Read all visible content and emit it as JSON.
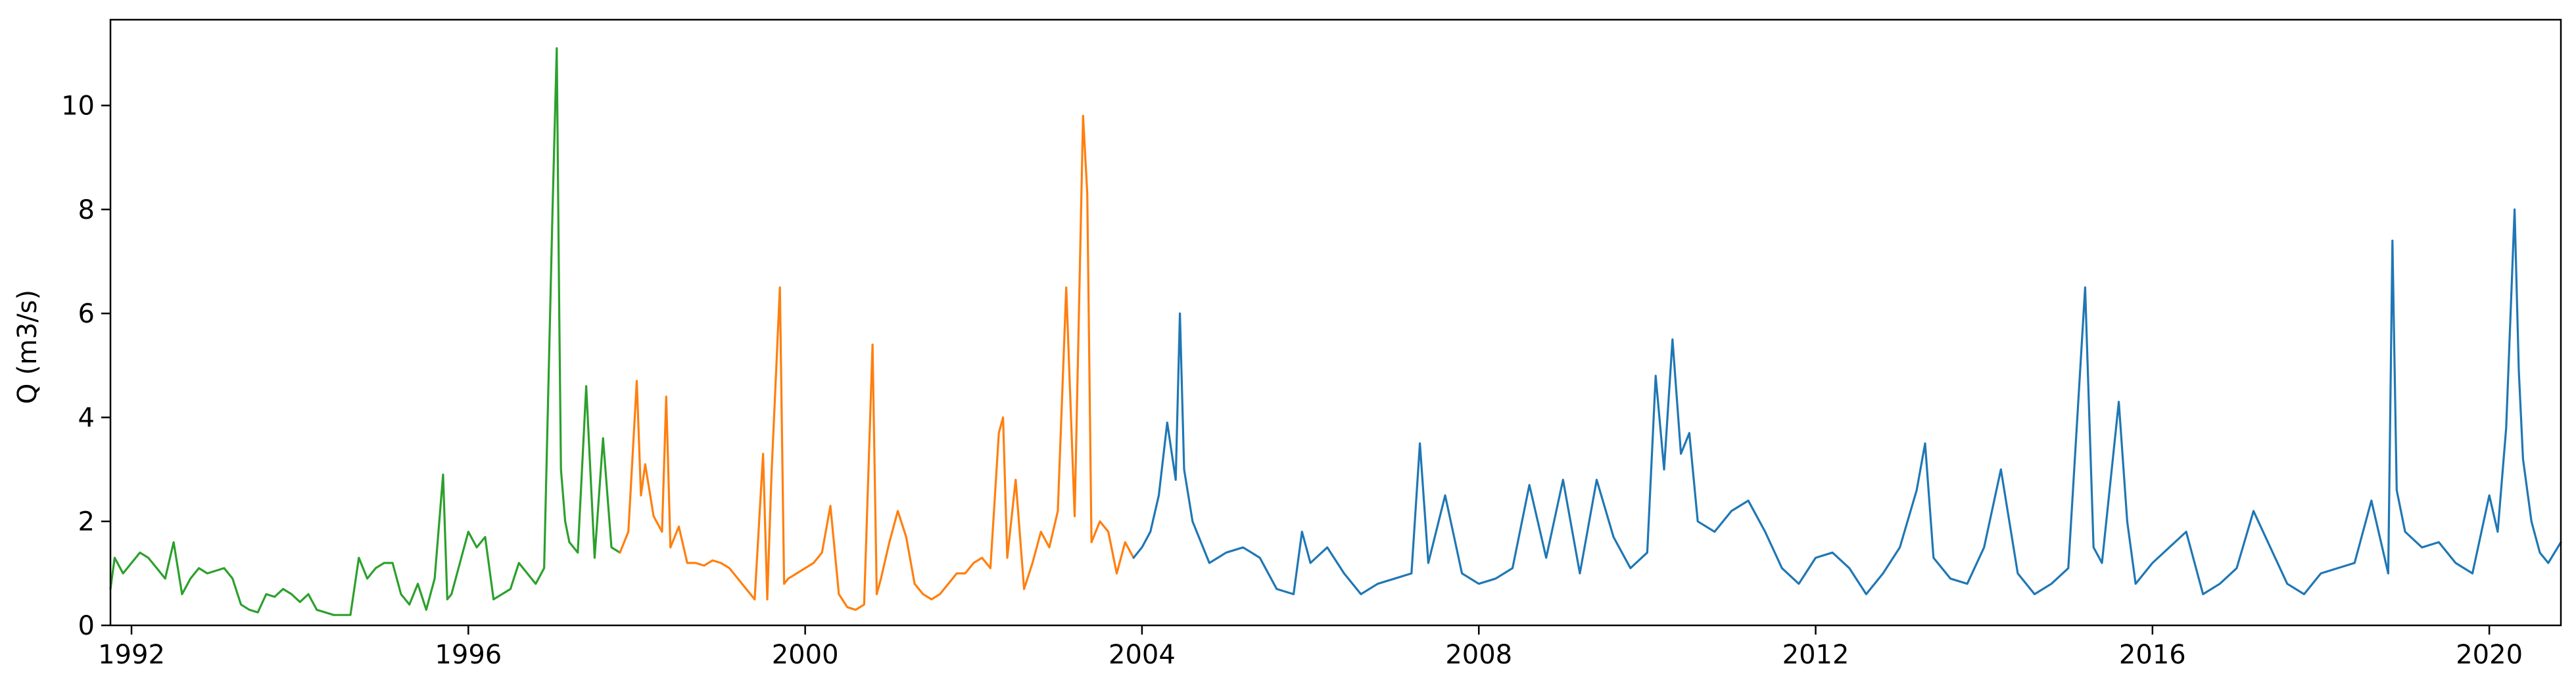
{
  "chart_data": {
    "type": "line",
    "title": "",
    "xlabel": "",
    "ylabel": "Q (m3/s)",
    "xlim": [
      1991.75,
      2020.85
    ],
    "ylim": [
      0,
      11.65
    ],
    "grid": false,
    "xticks": [
      1992,
      1996,
      2000,
      2004,
      2008,
      2012,
      2016,
      2020
    ],
    "yticks": [
      0,
      2,
      4,
      6,
      8,
      10
    ],
    "x_tick_labels": [
      "1992",
      "1996",
      "2000",
      "2004",
      "2008",
      "2012",
      "2016",
      "2020"
    ],
    "y_tick_labels": [
      "0",
      "2",
      "4",
      "6",
      "8",
      "10"
    ],
    "series": [
      {
        "color": "#2ca02c",
        "x": [
          1991.75,
          1991.8,
          1991.9,
          1992.0,
          1992.1,
          1992.2,
          1992.3,
          1992.4,
          1992.5,
          1992.6,
          1992.7,
          1992.8,
          1992.9,
          1993.0,
          1993.1,
          1993.2,
          1993.3,
          1993.4,
          1993.5,
          1993.6,
          1993.7,
          1993.8,
          1993.9,
          1994.0,
          1994.1,
          1994.2,
          1994.3,
          1994.4,
          1994.5,
          1994.6,
          1994.7,
          1994.8,
          1994.9,
          1995.0,
          1995.1,
          1995.2,
          1995.3,
          1995.4,
          1995.5,
          1995.6,
          1995.7,
          1995.75,
          1995.8,
          1995.9,
          1996.0,
          1996.1,
          1996.2,
          1996.3,
          1996.4,
          1996.5,
          1996.6,
          1996.7,
          1996.8,
          1996.9,
          1997.0,
          1997.05,
          1997.08,
          1997.1,
          1997.15,
          1997.2,
          1997.3,
          1997.4,
          1997.5,
          1997.6,
          1997.7,
          1997.8
        ],
        "y": [
          0.7,
          1.3,
          1.0,
          1.2,
          1.4,
          1.3,
          1.1,
          0.9,
          1.6,
          0.6,
          0.9,
          1.1,
          1.0,
          1.05,
          1.1,
          0.9,
          0.4,
          0.3,
          0.25,
          0.6,
          0.55,
          0.7,
          0.6,
          0.45,
          0.6,
          0.3,
          0.25,
          0.2,
          0.2,
          0.2,
          1.3,
          0.9,
          1.1,
          1.2,
          1.2,
          0.6,
          0.4,
          0.8,
          0.3,
          0.9,
          2.9,
          0.5,
          0.6,
          1.2,
          1.8,
          1.5,
          1.7,
          0.5,
          0.6,
          0.7,
          1.2,
          1.0,
          0.8,
          1.1,
          8.0,
          11.1,
          6.0,
          3.0,
          2.0,
          1.6,
          1.4,
          4.6,
          1.3,
          3.6,
          1.5,
          1.4
        ]
      },
      {
        "color": "#ff7f0e",
        "x": [
          1997.8,
          1997.9,
          1998.0,
          1998.05,
          1998.1,
          1998.2,
          1998.3,
          1998.35,
          1998.4,
          1998.5,
          1998.6,
          1998.7,
          1998.8,
          1998.9,
          1999.0,
          1999.1,
          1999.2,
          1999.3,
          1999.4,
          1999.5,
          1999.55,
          1999.6,
          1999.7,
          1999.75,
          1999.8,
          1999.9,
          2000.0,
          2000.1,
          2000.2,
          2000.3,
          2000.4,
          2000.5,
          2000.6,
          2000.7,
          2000.8,
          2000.85,
          2000.9,
          2001.0,
          2001.1,
          2001.2,
          2001.3,
          2001.4,
          2001.5,
          2001.6,
          2001.7,
          2001.8,
          2001.9,
          2002.0,
          2002.1,
          2002.2,
          2002.3,
          2002.35,
          2002.4,
          2002.5,
          2002.6,
          2002.7,
          2002.8,
          2002.9,
          2003.0,
          2003.1,
          2003.2,
          2003.3,
          2003.35,
          2003.4,
          2003.5,
          2003.6,
          2003.7,
          2003.8,
          2003.9
        ],
        "y": [
          1.4,
          1.8,
          4.7,
          2.5,
          3.1,
          2.1,
          1.8,
          4.4,
          1.5,
          1.9,
          1.2,
          1.2,
          1.15,
          1.25,
          1.2,
          1.1,
          0.9,
          0.7,
          0.5,
          3.3,
          0.5,
          2.9,
          6.5,
          0.8,
          0.9,
          1.0,
          1.1,
          1.2,
          1.4,
          2.3,
          0.6,
          0.35,
          0.3,
          0.4,
          5.4,
          0.6,
          0.9,
          1.6,
          2.2,
          1.7,
          0.8,
          0.6,
          0.5,
          0.6,
          0.8,
          1.0,
          1.0,
          1.2,
          1.3,
          1.1,
          3.7,
          4.0,
          1.3,
          2.8,
          0.7,
          1.2,
          1.8,
          1.5,
          2.2,
          6.5,
          2.1,
          9.8,
          8.3,
          1.6,
          2.0,
          1.8,
          1.0,
          1.6,
          1.3
        ]
      },
      {
        "color": "#1f77b4",
        "x": [
          2003.9,
          2004.0,
          2004.1,
          2004.2,
          2004.3,
          2004.4,
          2004.45,
          2004.5,
          2004.6,
          2004.7,
          2004.8,
          2004.9,
          2005.0,
          2005.2,
          2005.4,
          2005.6,
          2005.8,
          2005.9,
          2006.0,
          2006.2,
          2006.4,
          2006.6,
          2006.8,
          2007.0,
          2007.2,
          2007.3,
          2007.4,
          2007.6,
          2007.8,
          2008.0,
          2008.2,
          2008.4,
          2008.6,
          2008.8,
          2009.0,
          2009.2,
          2009.4,
          2009.6,
          2009.8,
          2010.0,
          2010.1,
          2010.2,
          2010.3,
          2010.4,
          2010.5,
          2010.6,
          2010.8,
          2011.0,
          2011.2,
          2011.4,
          2011.6,
          2011.8,
          2012.0,
          2012.2,
          2012.4,
          2012.6,
          2012.8,
          2013.0,
          2013.2,
          2013.3,
          2013.4,
          2013.6,
          2013.8,
          2014.0,
          2014.2,
          2014.4,
          2014.6,
          2014.8,
          2015.0,
          2015.2,
          2015.3,
          2015.4,
          2015.6,
          2015.7,
          2015.8,
          2016.0,
          2016.2,
          2016.4,
          2016.6,
          2016.8,
          2017.0,
          2017.2,
          2017.4,
          2017.6,
          2017.8,
          2018.0,
          2018.2,
          2018.4,
          2018.6,
          2018.8,
          2018.85,
          2018.9,
          2019.0,
          2019.2,
          2019.4,
          2019.6,
          2019.8,
          2020.0,
          2020.1,
          2020.2,
          2020.3,
          2020.35,
          2020.4,
          2020.5,
          2020.6,
          2020.7,
          2020.85
        ],
        "y": [
          1.3,
          1.5,
          1.8,
          2.5,
          3.9,
          2.8,
          6.0,
          3.0,
          2.0,
          1.6,
          1.2,
          1.3,
          1.4,
          1.5,
          1.3,
          0.7,
          0.6,
          1.8,
          1.2,
          1.5,
          1.0,
          0.6,
          0.8,
          0.9,
          1.0,
          3.5,
          1.2,
          2.5,
          1.0,
          0.8,
          0.9,
          1.1,
          2.7,
          1.3,
          2.8,
          1.0,
          2.8,
          1.7,
          1.1,
          1.4,
          4.8,
          3.0,
          5.5,
          3.3,
          3.7,
          2.0,
          1.8,
          2.2,
          2.4,
          1.8,
          1.1,
          0.8,
          1.3,
          1.4,
          1.1,
          0.6,
          1.0,
          1.5,
          2.6,
          3.5,
          1.3,
          0.9,
          0.8,
          1.5,
          3.0,
          1.0,
          0.6,
          0.8,
          1.1,
          6.5,
          1.5,
          1.2,
          4.3,
          2.0,
          0.8,
          1.2,
          1.5,
          1.8,
          0.6,
          0.8,
          1.1,
          2.2,
          1.5,
          0.8,
          0.6,
          1.0,
          1.1,
          1.2,
          2.4,
          1.0,
          7.4,
          2.6,
          1.8,
          1.5,
          1.6,
          1.2,
          1.0,
          2.5,
          1.8,
          3.8,
          8.0,
          4.9,
          3.2,
          2.0,
          1.4,
          1.2,
          1.6
        ]
      }
    ]
  }
}
